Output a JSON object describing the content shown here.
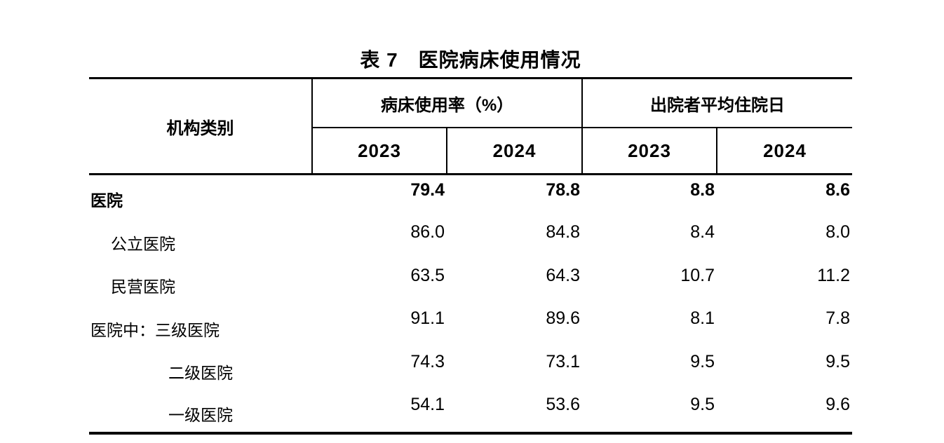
{
  "title": "表 7　医院病床使用情况",
  "colors": {
    "text": "#000000",
    "border": "#000000",
    "background": "#ffffff"
  },
  "table": {
    "header": {
      "institution": "机构类别",
      "group_bed_utilization": "病床使用率（%）",
      "group_avg_stay": "出院者平均住院日",
      "years": [
        "2023",
        "2024",
        "2023",
        "2024"
      ]
    },
    "rows": [
      {
        "label": "医院",
        "values": [
          "79.4",
          "78.8",
          "8.8",
          "8.6"
        ]
      },
      {
        "label": "公立医院",
        "values": [
          "86.0",
          "84.8",
          "8.4",
          "8.0"
        ]
      },
      {
        "label": "民营医院",
        "values": [
          "63.5",
          "64.3",
          "10.7",
          "11.2"
        ]
      },
      {
        "label": "医院中：三级医院",
        "values": [
          "91.1",
          "89.6",
          "8.1",
          "7.8"
        ]
      },
      {
        "label": "二级医院",
        "values": [
          "74.3",
          "73.1",
          "9.5",
          "9.5"
        ]
      },
      {
        "label": "一级医院",
        "values": [
          "54.1",
          "53.6",
          "9.5",
          "9.6"
        ]
      }
    ]
  }
}
